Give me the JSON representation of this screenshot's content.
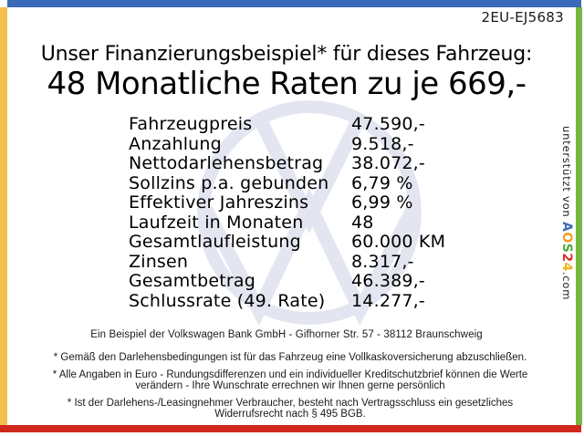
{
  "plate_number": "2EU-EJ5683",
  "header": {
    "intro": "Unser Finanzierungsbeispiel* für dieses Fahrzeug:",
    "headline": "48 Monatliche Raten zu je 669,-"
  },
  "finance_table": {
    "rows": [
      {
        "label": "Fahrzeugpreis",
        "value": "47.590,-"
      },
      {
        "label": "Anzahlung",
        "value": "9.518,-"
      },
      {
        "label": "Nettodarlehensbetrag",
        "value": "38.072,-"
      },
      {
        "label": "Sollzins p.a. gebunden",
        "value": "6,79 %"
      },
      {
        "label": "Effektiver Jahreszins",
        "value": "6,99 %"
      },
      {
        "label": "Laufzeit in Monaten",
        "value": "48"
      },
      {
        "label": "Gesamtlaufleistung",
        "value": "60.000 KM"
      },
      {
        "label": "Zinsen",
        "value": "8.317,-"
      },
      {
        "label": "Gesamtbetrag",
        "value": "46.389,-"
      },
      {
        "label": "Schlussrate (49. Rate)",
        "value": "14.277,-"
      }
    ]
  },
  "footer": {
    "bank_line": "Ein Beispiel der Volkswagen Bank GmbH - Gifhorner Str. 57 - 38112 Braunschweig",
    "footnotes": [
      [
        "* Gemäß den Darlehensbedingungen ist für das Fahrzeug eine Vollkaskoversicherung abzuschließen."
      ],
      [
        "* Alle Angaben in Euro - Rundungsdifferenzen und ein individueller Kreditschutzbrief können die Werte",
        "verändern - Ihre Wunschrate errechnen wir Ihnen gerne persönlich"
      ],
      [
        "* Ist der Darlehens-/Leasingnehmer Verbraucher, besteht nach Vertragsschluss ein gesetzliches",
        "Widerrufsrecht nach § 495 BGB."
      ]
    ]
  },
  "sidebar": {
    "prefix": "unterstützt von ",
    "brand": [
      {
        "char": "A",
        "color": "#3c6cb4"
      },
      {
        "char": "O",
        "color": "#f39a1b"
      },
      {
        "char": "S",
        "color": "#4fa83c"
      },
      {
        "char": "2",
        "color": "#dd2f23"
      },
      {
        "char": "4",
        "color": "#eeb31f"
      }
    ],
    "suffix": ".com"
  },
  "watermark": {
    "name": "vw-logo",
    "color": "#e3e6f0"
  },
  "frame_colors": {
    "top": "#3a6ab8",
    "left": "#f6c050",
    "right": "#76b843",
    "bottom": "#d1281c"
  }
}
